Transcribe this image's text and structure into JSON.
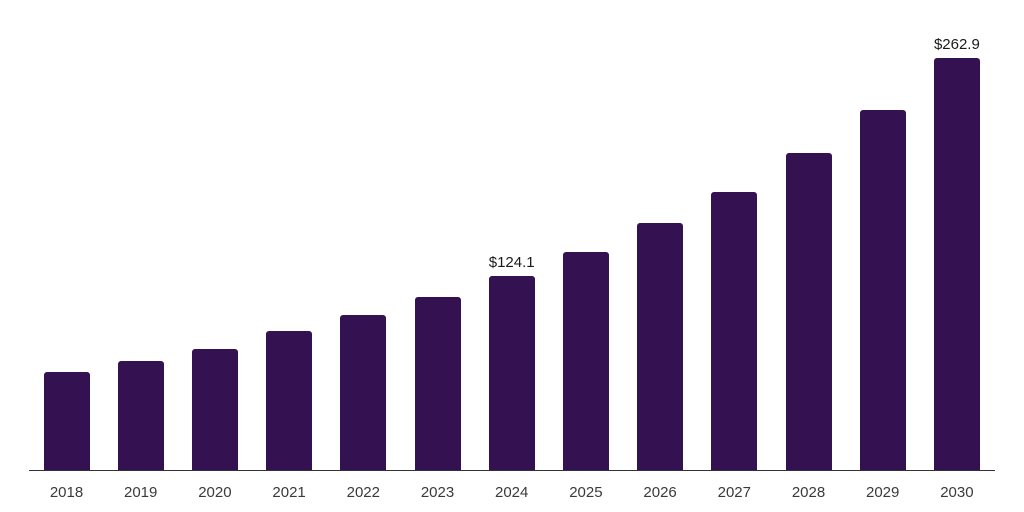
{
  "chart_data": {
    "type": "bar",
    "title": "",
    "xlabel": "",
    "ylabel": "",
    "categories": [
      "2018",
      "2019",
      "2020",
      "2021",
      "2022",
      "2023",
      "2024",
      "2025",
      "2026",
      "2027",
      "2028",
      "2029",
      "2030"
    ],
    "values": [
      62.7,
      69.6,
      77.2,
      88.9,
      99.0,
      110.6,
      124.1,
      139.3,
      157.5,
      177.6,
      202.1,
      229.8,
      262.9
    ],
    "value_labels": [
      {
        "category": "2024",
        "text": "$124.1"
      },
      {
        "category": "2030",
        "text": "$262.9"
      }
    ],
    "ylim": [
      0,
      300
    ],
    "gridline_step": 50,
    "grid": true,
    "legend": "none",
    "colors": {
      "bar": "#341150",
      "gridline": "#f2f2f2",
      "axis_line": "#333333",
      "tick_label": "#3a3a3a",
      "value_label": "#1a1a1a",
      "background": "#ffffff"
    }
  }
}
